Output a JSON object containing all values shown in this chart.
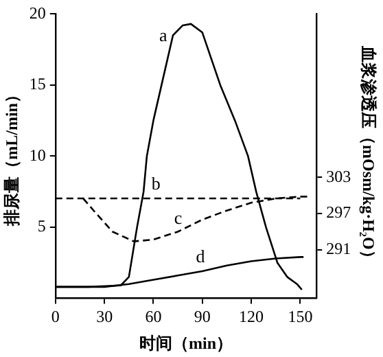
{
  "chart_data": {
    "type": "line",
    "xlabel": "时间（min）",
    "ylabel": "排尿量（mL/min）",
    "y2label": "血浆渗透压（mOsm/kg·H₂O）",
    "xlim": [
      0,
      160
    ],
    "xticks": [
      0,
      30,
      60,
      90,
      120,
      150
    ],
    "ylim": [
      0,
      20
    ],
    "yticks": [
      5,
      10,
      15,
      20
    ],
    "y2lim": [
      283,
      330
    ],
    "y2ticks": [
      291,
      297,
      303
    ],
    "grid": false,
    "legend": false,
    "marker": "none",
    "series": [
      {
        "name": "a",
        "color": "#000000",
        "line_style": "solid",
        "x": [
          0,
          20,
          40,
          45,
          50,
          54,
          56,
          60,
          65,
          72,
          78,
          83,
          90,
          101,
          110,
          118,
          123,
          129,
          136,
          142,
          148,
          151
        ],
        "values": [
          0.8,
          0.8,
          0.9,
          1.5,
          5,
          7.5,
          10,
          12.5,
          15,
          18.5,
          19.2,
          19.3,
          18.7,
          15,
          12.5,
          10,
          7.5,
          5,
          2.5,
          1.5,
          1,
          0.6
        ]
      },
      {
        "name": "b",
        "color": "#000000",
        "line_style": "dashed",
        "axis": "y2",
        "x": [
          0,
          150
        ],
        "values": [
          299.5,
          299.5
        ]
      },
      {
        "name": "c",
        "color": "#000000",
        "line_style": "dashed",
        "axis": "y2",
        "x": [
          17,
          25,
          35,
          48,
          60,
          75,
          90,
          105,
          120,
          135,
          150,
          155
        ],
        "values": [
          299.5,
          297,
          294,
          292.4,
          292.7,
          294,
          296,
          297.5,
          298.8,
          299.5,
          299.8,
          299.8
        ]
      },
      {
        "name": "d",
        "color": "#000000",
        "line_style": "solid",
        "x": [
          0,
          30,
          45,
          60,
          75,
          90,
          105,
          120,
          135,
          150,
          152
        ],
        "values": [
          0.8,
          0.8,
          1.0,
          1.3,
          1.6,
          1.9,
          2.3,
          2.6,
          2.8,
          2.9,
          2.9
        ]
      }
    ]
  }
}
